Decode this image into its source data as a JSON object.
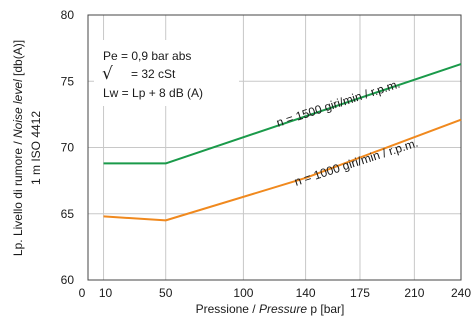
{
  "chart_data": {
    "type": "line",
    "x_title_parts": [
      "Pressione / ",
      "Pressure",
      " p [bar]"
    ],
    "y_title_line1_parts": [
      "Lp. Livello di rumore / ",
      "Noise level",
      " [db(A)]"
    ],
    "y_title_line2": "1 m ISO 4412",
    "x_ticks": [
      "0",
      "10",
      "50",
      "100",
      "140",
      "175",
      "210",
      "240"
    ],
    "x_tick_values": [
      0,
      10,
      50,
      100,
      140,
      175,
      210,
      240
    ],
    "y_ticks": [
      "60",
      "65",
      "70",
      "75",
      "80"
    ],
    "y_tick_values": [
      60,
      65,
      70,
      75,
      80
    ],
    "xlim": [
      0,
      240
    ],
    "ylim": [
      60,
      80
    ],
    "grid": true,
    "conditions": {
      "pe": "Pe  = 0,9 bar abs",
      "viscosity_symbol": "√",
      "viscosity": "= 32 cSt",
      "lw": "Lw = Lp + 8 dB (A)"
    },
    "series": [
      {
        "name": "n = 1500 giri/min / r.p.m.",
        "color": "#1a9a4a",
        "x": [
          10,
          50,
          240
        ],
        "y": [
          68.8,
          68.8,
          76.3
        ]
      },
      {
        "name": "n = 1000 giri/min / r.p.m.",
        "color": "#f0891e",
        "x": [
          10,
          50,
          140,
          240
        ],
        "y": [
          64.8,
          64.5,
          67.7,
          72.1
        ]
      }
    ]
  }
}
